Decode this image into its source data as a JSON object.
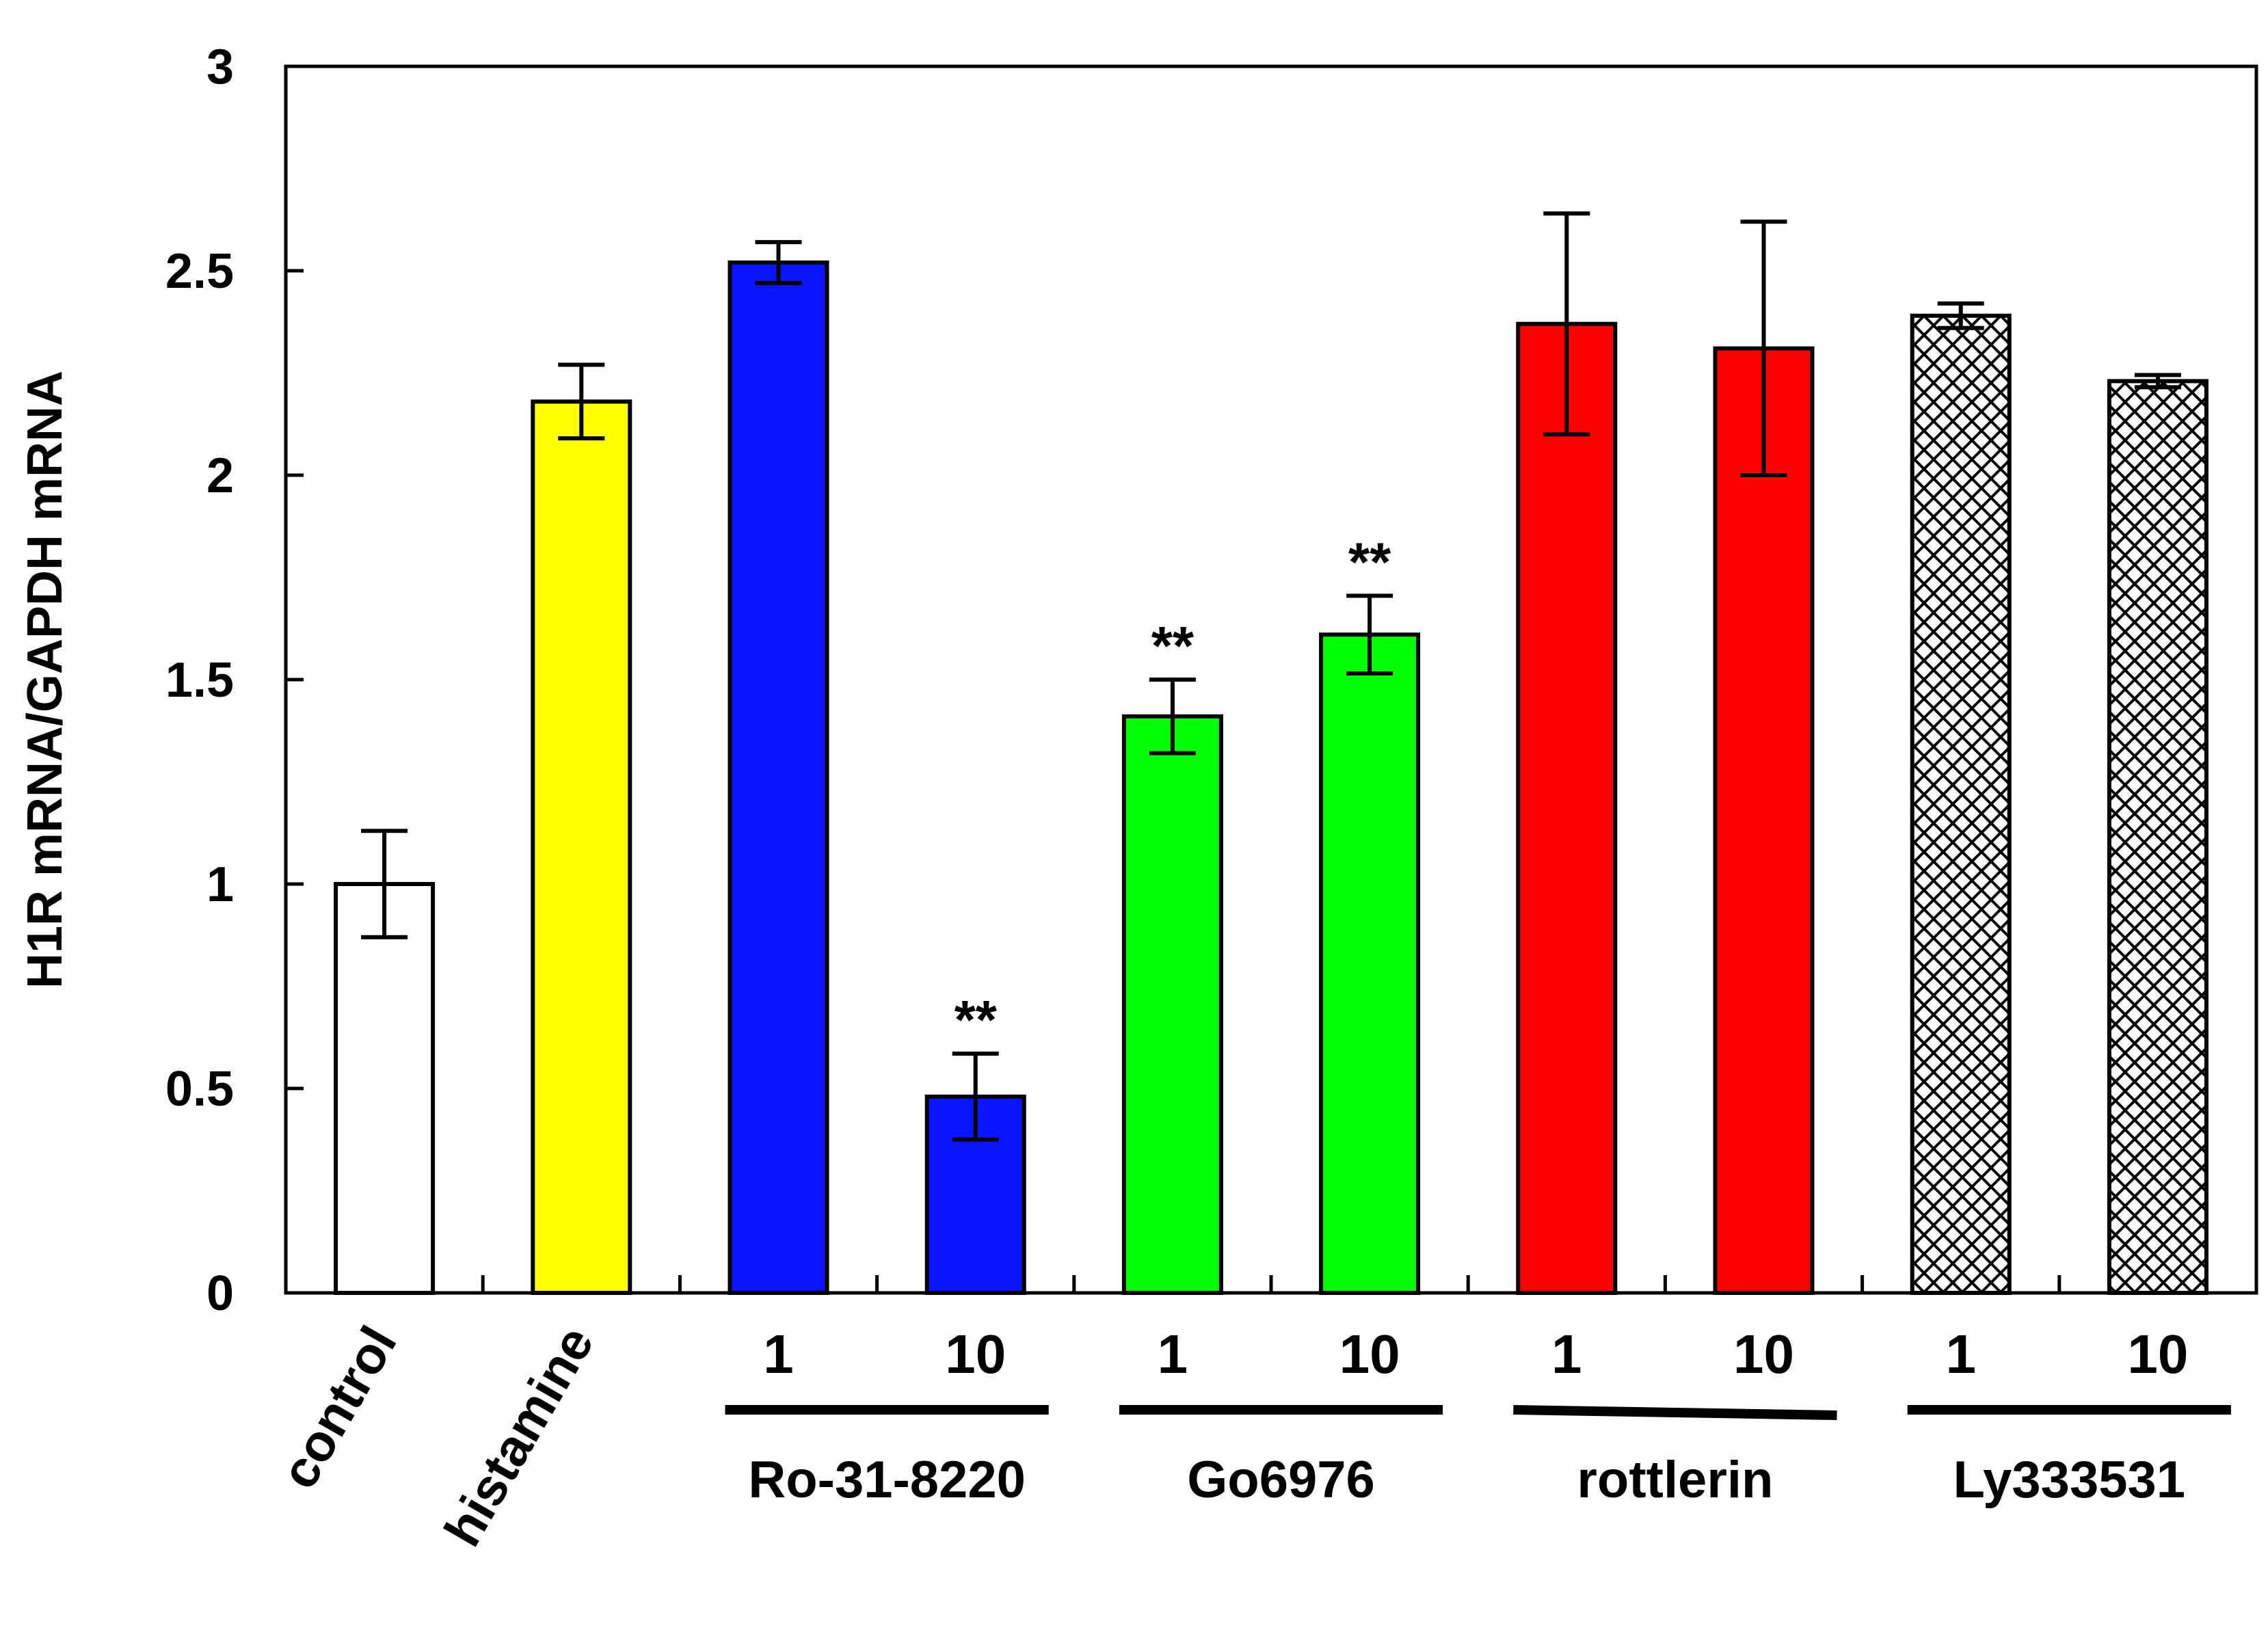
{
  "chart_data": {
    "type": "bar",
    "title": "",
    "xlabel": "",
    "ylabel": "H1R mRNA/GAPDH mRNA",
    "ylim": [
      0,
      3
    ],
    "yticks": [
      0,
      0.5,
      1,
      1.5,
      2,
      2.5,
      3
    ],
    "ytick_labels": [
      "0",
      "0.5",
      "1",
      "1.5",
      "2",
      "2.5",
      "3"
    ],
    "grid": false,
    "bars": [
      {
        "label": "control",
        "value": 1.0,
        "error": 0.13,
        "fill": "#ffffff",
        "pattern": "none",
        "significance": ""
      },
      {
        "label": "histamine",
        "value": 2.18,
        "error": 0.09,
        "fill": "#ffff00",
        "pattern": "none",
        "significance": ""
      },
      {
        "label": "1",
        "value": 2.52,
        "error": 0.05,
        "fill": "#0a14ff",
        "pattern": "none",
        "significance": ""
      },
      {
        "label": "10",
        "value": 0.48,
        "error": 0.105,
        "fill": "#0a14ff",
        "pattern": "none",
        "significance": "**"
      },
      {
        "label": "1",
        "value": 1.41,
        "error": 0.09,
        "fill": "#00ff00",
        "pattern": "none",
        "significance": "**"
      },
      {
        "label": "10",
        "value": 1.61,
        "error": 0.095,
        "fill": "#00ff00",
        "pattern": "none",
        "significance": "**"
      },
      {
        "label": "1",
        "value": 2.37,
        "error": 0.27,
        "fill": "#ff0000",
        "pattern": "none",
        "significance": ""
      },
      {
        "label": "10",
        "value": 2.31,
        "error": 0.31,
        "fill": "#ff0000",
        "pattern": "none",
        "significance": ""
      },
      {
        "label": "1",
        "value": 2.39,
        "error": 0.03,
        "fill": "#ffffff",
        "pattern": "crosshatch",
        "significance": ""
      },
      {
        "label": "10",
        "value": 2.23,
        "error": 0.015,
        "fill": "#ffffff",
        "pattern": "crosshatch",
        "significance": ""
      }
    ],
    "groups": [
      {
        "name": "Ro-31-8220",
        "bar_indices": [
          2,
          3
        ]
      },
      {
        "name": "Go6976",
        "bar_indices": [
          4,
          5
        ]
      },
      {
        "name": "rottlerin",
        "bar_indices": [
          6,
          7
        ]
      },
      {
        "name": "Ly333531",
        "bar_indices": [
          8,
          9
        ]
      }
    ]
  }
}
